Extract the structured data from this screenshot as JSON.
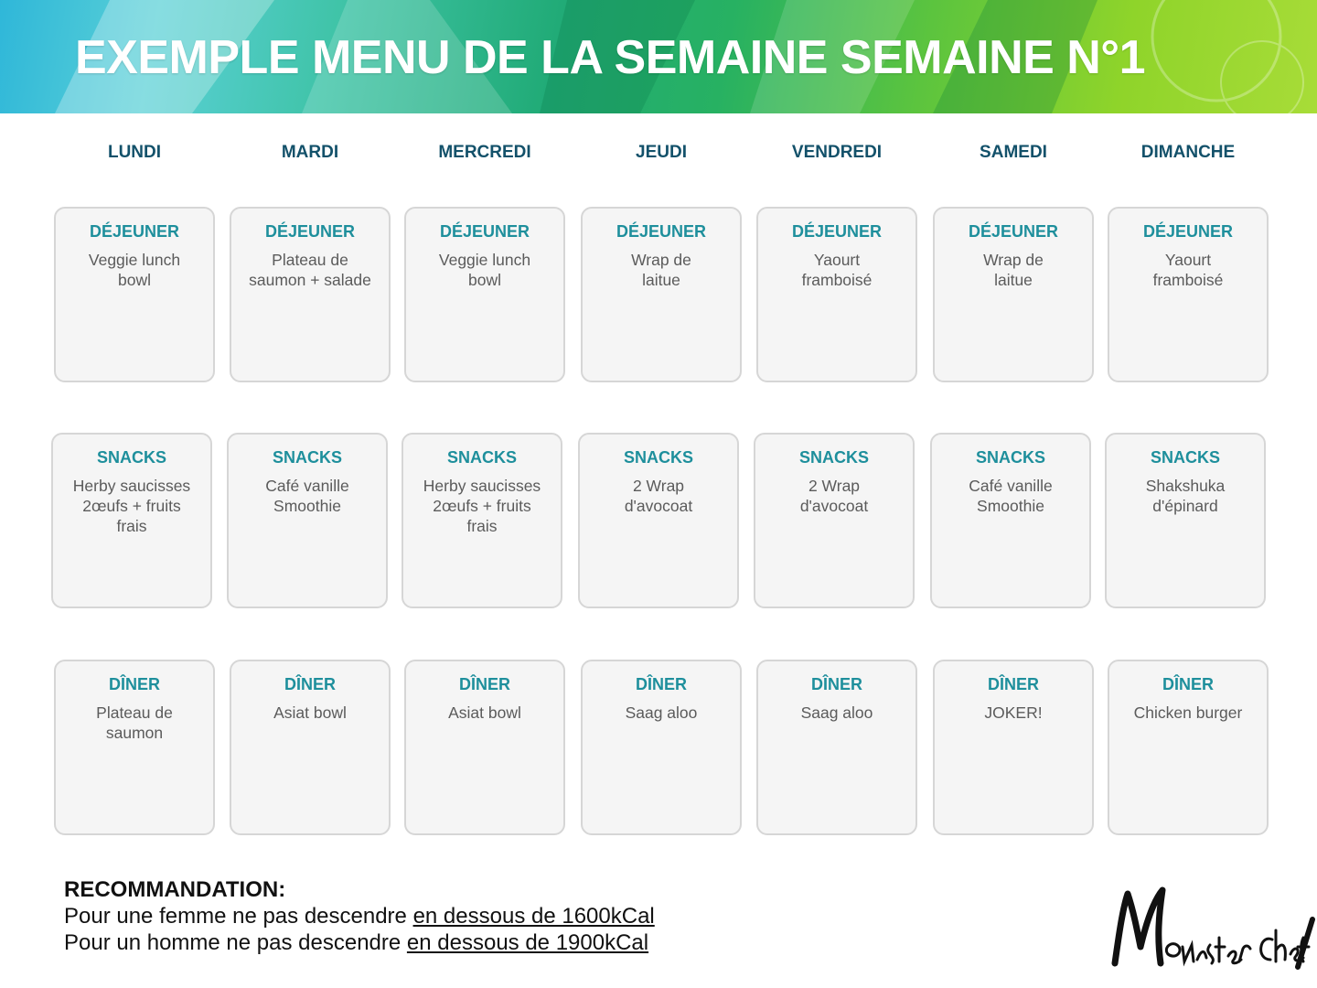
{
  "banner": {
    "title": "EXEMPLE MENU DE LA SEMAINE SEMAINE N°1"
  },
  "colors": {
    "day_label": "#13516a",
    "meal_type": "#1e8f9c",
    "card_bg": "#f5f5f5",
    "dish_text": "#5b5b5b"
  },
  "days": [
    {
      "label": "LUNDI",
      "meals": [
        {
          "type": "DÉJEUNER",
          "dish": "Veggie lunch\nbowl"
        },
        {
          "type": "SNACKS",
          "dish": "Herby saucisses\n2œufs + fruits\nfrais"
        },
        {
          "type": "DÎNER",
          "dish": "Plateau de\nsaumon"
        }
      ]
    },
    {
      "label": "MARDI",
      "meals": [
        {
          "type": "DÉJEUNER",
          "dish": "Plateau de\nsaumon + salade"
        },
        {
          "type": "SNACKS",
          "dish": "Café vanille\nSmoothie"
        },
        {
          "type": "DÎNER",
          "dish": "Asiat bowl"
        }
      ]
    },
    {
      "label": "MERCREDI",
      "meals": [
        {
          "type": "DÉJEUNER",
          "dish": "Veggie lunch\nbowl"
        },
        {
          "type": "SNACKS",
          "dish": "Herby saucisses\n2œufs + fruits\nfrais"
        },
        {
          "type": "DÎNER",
          "dish": "Asiat bowl"
        }
      ]
    },
    {
      "label": "JEUDI",
      "meals": [
        {
          "type": "DÉJEUNER",
          "dish": "Wrap de\nlaitue"
        },
        {
          "type": "SNACKS",
          "dish": "2 Wrap\nd'avocoat"
        },
        {
          "type": "DÎNER",
          "dish": "Saag aloo"
        }
      ]
    },
    {
      "label": "VENDREDI",
      "meals": [
        {
          "type": "DÉJEUNER",
          "dish": "Yaourt\nframboisé"
        },
        {
          "type": "SNACKS",
          "dish": "2 Wrap\nd'avocoat"
        },
        {
          "type": "DÎNER",
          "dish": "Saag aloo"
        }
      ]
    },
    {
      "label": "SAMEDI",
      "meals": [
        {
          "type": "DÉJEUNER",
          "dish": "Wrap de\nlaitue"
        },
        {
          "type": "SNACKS",
          "dish": "Café vanille\nSmoothie"
        },
        {
          "type": "DÎNER",
          "dish": "JOKER!"
        }
      ]
    },
    {
      "label": "DIMANCHE",
      "meals": [
        {
          "type": "DÉJEUNER",
          "dish": "Yaourt\nframboisé"
        },
        {
          "type": "SNACKS",
          "dish": "Shakshuka\nd'épinard"
        },
        {
          "type": "DÎNER",
          "dish": "Chicken burger"
        }
      ]
    }
  ],
  "recommendation": {
    "title": "RECOMMANDATION:",
    "line1_prefix": "Pour une femme ne pas descendre ",
    "line1_link": "en dessous de 1600kCal",
    "line2_prefix": "Pour un homme ne pas descendre ",
    "line2_link": "en dessous de 1900kCal"
  },
  "logo": {
    "text": "Monster Chef"
  }
}
